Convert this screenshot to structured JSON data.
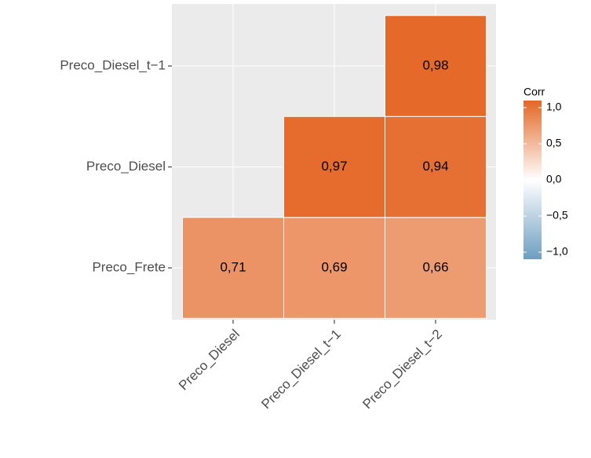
{
  "chart_data": {
    "type": "heatmap",
    "x_categories": [
      "Preco_Diesel",
      "Preco_Diesel_t−1",
      "Preco_Diesel_t−2"
    ],
    "y_categories": [
      "Preco_Frete",
      "Preco_Diesel",
      "Preco_Diesel_t−1"
    ],
    "values": [
      [
        0.71,
        0.69,
        0.66
      ],
      [
        null,
        0.97,
        0.94
      ],
      [
        null,
        null,
        0.98
      ]
    ],
    "value_labels": [
      [
        "0,71",
        "0,69",
        "0,66"
      ],
      [
        null,
        "0,97",
        "0,94"
      ],
      [
        null,
        null,
        "0,98"
      ]
    ],
    "legend_title": "Corr",
    "colors": {
      "low": "#6D9EC1",
      "mid": "#FFFFFF",
      "high": "#E46726"
    },
    "clim": [
      -1,
      1
    ],
    "cticks": [
      {
        "value": 1,
        "label": "1,0"
      },
      {
        "value": 0.5,
        "label": "0,5"
      },
      {
        "value": 0,
        "label": "0,0"
      },
      {
        "value": -0.5,
        "label": "−0,5"
      },
      {
        "value": -1,
        "label": "−1,0"
      }
    ],
    "grid": true
  }
}
